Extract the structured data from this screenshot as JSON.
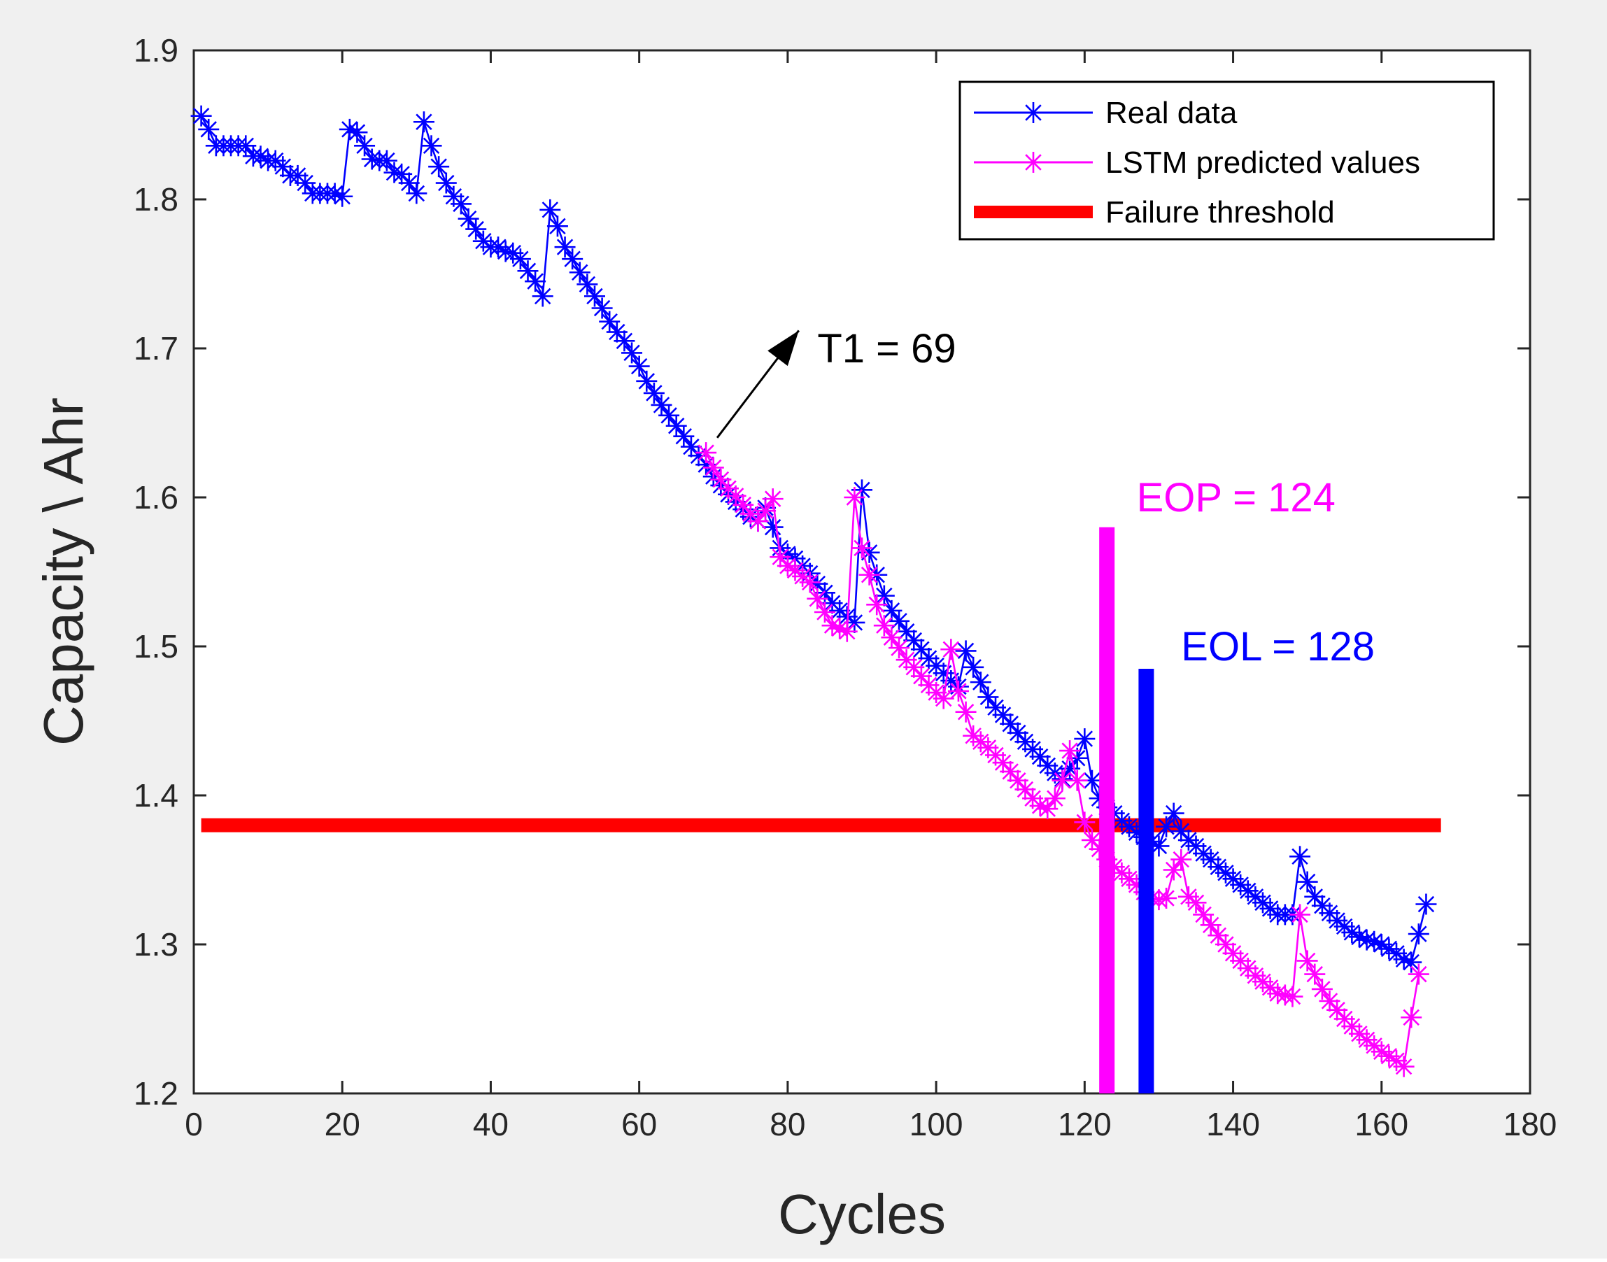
{
  "chart_data": {
    "type": "line",
    "title": "",
    "xlabel": "Cycles",
    "ylabel": "Capacity \\ Ahr",
    "xlim": [
      0,
      180
    ],
    "ylim": [
      1.2,
      1.9
    ],
    "xticks": [
      "0",
      "20",
      "40",
      "60",
      "80",
      "100",
      "120",
      "140",
      "160",
      "180"
    ],
    "yticks": [
      "1.2",
      "1.3",
      "1.4",
      "1.5",
      "1.6",
      "1.7",
      "1.8",
      "1.9"
    ],
    "grid": false,
    "legend_location": "top-right",
    "series": [
      {
        "name": "Real data",
        "color": "#0000ff",
        "marker": "asterisk",
        "start_cycle": 1,
        "values": [
          1.856,
          1.847,
          1.836,
          1.836,
          1.836,
          1.836,
          1.836,
          1.829,
          1.829,
          1.826,
          1.826,
          1.822,
          1.816,
          1.816,
          1.811,
          1.804,
          1.804,
          1.804,
          1.804,
          1.802,
          1.847,
          1.845,
          1.836,
          1.827,
          1.826,
          1.826,
          1.818,
          1.817,
          1.811,
          1.804,
          1.852,
          1.836,
          1.822,
          1.811,
          1.802,
          1.797,
          1.787,
          1.78,
          1.772,
          1.768,
          1.768,
          1.765,
          1.764,
          1.76,
          1.752,
          1.745,
          1.735,
          1.793,
          1.782,
          1.768,
          1.76,
          1.751,
          1.743,
          1.735,
          1.727,
          1.718,
          1.711,
          1.705,
          1.697,
          1.688,
          1.678,
          1.67,
          1.662,
          1.655,
          1.648,
          1.641,
          1.634,
          1.628,
          1.622,
          1.614,
          1.608,
          1.602,
          1.597,
          1.592,
          1.587,
          1.584,
          1.593,
          1.58,
          1.566,
          1.562,
          1.559,
          1.554,
          1.549,
          1.542,
          1.536,
          1.529,
          1.524,
          1.52,
          1.516,
          1.605,
          1.563,
          1.548,
          1.534,
          1.524,
          1.517,
          1.51,
          1.504,
          1.498,
          1.492,
          1.487,
          1.482,
          1.477,
          1.473,
          1.497,
          1.486,
          1.476,
          1.466,
          1.459,
          1.454,
          1.448,
          1.442,
          1.436,
          1.431,
          1.426,
          1.42,
          1.415,
          1.411,
          1.418,
          1.425,
          1.438,
          1.41,
          1.398,
          1.392,
          1.388,
          1.383,
          1.379,
          1.375,
          1.372,
          1.369,
          1.366,
          1.379,
          1.388,
          1.376,
          1.37,
          1.366,
          1.361,
          1.357,
          1.352,
          1.348,
          1.344,
          1.34,
          1.336,
          1.332,
          1.328,
          1.324,
          1.32,
          1.32,
          1.32,
          1.359,
          1.342,
          1.332,
          1.326,
          1.321,
          1.316,
          1.312,
          1.308,
          1.305,
          1.303,
          1.302,
          1.3,
          1.297,
          1.294,
          1.29,
          1.288,
          1.307,
          1.327
        ]
      },
      {
        "name": "LSTM predicted values",
        "color": "#ff00ff",
        "marker": "asterisk",
        "start_cycle": 69,
        "values": [
          1.63,
          1.62,
          1.612,
          1.606,
          1.601,
          1.595,
          1.589,
          1.584,
          1.591,
          1.599,
          1.56,
          1.554,
          1.551,
          1.547,
          1.543,
          1.532,
          1.523,
          1.514,
          1.512,
          1.51,
          1.6,
          1.566,
          1.548,
          1.528,
          1.514,
          1.506,
          1.499,
          1.491,
          1.486,
          1.48,
          1.474,
          1.469,
          1.465,
          1.498,
          1.47,
          1.456,
          1.44,
          1.436,
          1.432,
          1.427,
          1.422,
          1.416,
          1.41,
          1.404,
          1.398,
          1.393,
          1.391,
          1.398,
          1.41,
          1.43,
          1.41,
          1.382,
          1.37,
          1.364,
          1.357,
          1.352,
          1.348,
          1.344,
          1.34,
          1.335,
          1.331,
          1.33,
          1.331,
          1.35,
          1.357,
          1.332,
          1.328,
          1.32,
          1.313,
          1.306,
          1.3,
          1.294,
          1.289,
          1.284,
          1.279,
          1.275,
          1.271,
          1.267,
          1.266,
          1.265,
          1.32,
          1.289,
          1.28,
          1.27,
          1.262,
          1.256,
          1.25,
          1.245,
          1.24,
          1.236,
          1.232,
          1.228,
          1.225,
          1.222,
          1.218,
          1.251,
          1.28
        ]
      }
    ],
    "threshold": {
      "name": "Failure threshold",
      "value": 1.38,
      "x_range": [
        1,
        168
      ],
      "color": "#ff0000"
    },
    "vertical_markers": [
      {
        "label": "EOP = 124",
        "x": 123,
        "y_range": [
          1.2,
          1.58
        ],
        "color": "#ff00ff"
      },
      {
        "label": "EOL = 128",
        "x": 128.3,
        "y_range": [
          1.2,
          1.485
        ],
        "color": "#0000ff"
      }
    ],
    "arrow_annotation": {
      "label": "T1 = 69",
      "from": [
        70.5,
        1.64
      ],
      "to": [
        81.5,
        1.712
      ],
      "color": "#000000"
    },
    "annotation_anchors": {
      "t1_label": [
        84,
        1.7
      ],
      "eop_label": [
        127,
        1.6
      ],
      "eol_label": [
        133,
        1.5
      ]
    }
  }
}
